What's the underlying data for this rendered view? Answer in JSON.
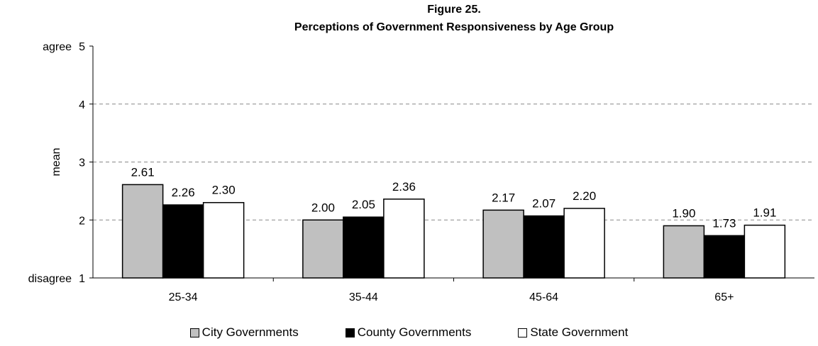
{
  "chart_data": {
    "type": "bar",
    "title_line1": "Figure 25.",
    "title_line2": "Perceptions of Government Responsiveness by Age Group",
    "ylabel": "mean",
    "ylim": [
      1,
      5
    ],
    "yticks": [
      {
        "value": 1,
        "label": "1",
        "prefix": "disagree"
      },
      {
        "value": 2,
        "label": "2",
        "prefix": ""
      },
      {
        "value": 3,
        "label": "3",
        "prefix": ""
      },
      {
        "value": 4,
        "label": "4",
        "prefix": ""
      },
      {
        "value": 5,
        "label": "5",
        "prefix": "agree"
      }
    ],
    "grid": "horizontal-dashed",
    "categories": [
      "25-34",
      "35-44",
      "45-64",
      "65+"
    ],
    "series": [
      {
        "name": "City Governments",
        "color": "#c0c0c0",
        "values": [
          2.61,
          2.0,
          2.17,
          1.9
        ],
        "labels": [
          "2.61",
          "2.00",
          "2.17",
          "1.90"
        ]
      },
      {
        "name": "County Governments",
        "color": "#000000",
        "values": [
          2.26,
          2.05,
          2.07,
          1.73
        ],
        "labels": [
          "2.26",
          "2.05",
          "2.07",
          "1.73"
        ]
      },
      {
        "name": "State Government",
        "color": "#ffffff",
        "values": [
          2.3,
          2.36,
          2.2,
          1.91
        ],
        "labels": [
          "2.30",
          "2.36",
          "2.20",
          "1.91"
        ]
      }
    ],
    "legend_position": "bottom"
  }
}
